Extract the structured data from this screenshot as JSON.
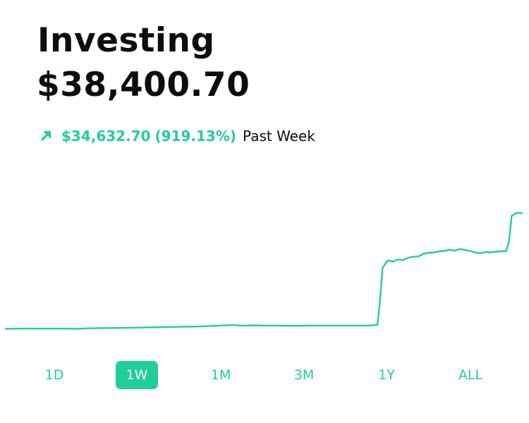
{
  "header": {
    "title": "Investing",
    "balance": "$38,400.70"
  },
  "change": {
    "amount": "$34,632.70",
    "percent": "(919.13%)",
    "period": "Past Week",
    "direction_icon": "arrow-up-right-icon"
  },
  "colors": {
    "accent": "#21ce99",
    "text": "#0d0d0d",
    "background": "#ffffff"
  },
  "chart_data": {
    "type": "line",
    "title": "",
    "xlabel": "",
    "ylabel": "",
    "grid": false,
    "legend": "none",
    "x": [
      0,
      2,
      4,
      6,
      8,
      10,
      12,
      14,
      16,
      18,
      20,
      22,
      24,
      26,
      28,
      30,
      32,
      34,
      36,
      38,
      40,
      42,
      44,
      46,
      48,
      50,
      52,
      54,
      56,
      58,
      60,
      62,
      64,
      66,
      68,
      70,
      72,
      72.5,
      73,
      74,
      75,
      76,
      77,
      78,
      79,
      80,
      81,
      82,
      83,
      84,
      85,
      86,
      87,
      88,
      89,
      90,
      91,
      92,
      93,
      94,
      95,
      96,
      97,
      97.5,
      98,
      99,
      100
    ],
    "values": [
      3768,
      3800,
      3820,
      3790,
      3830,
      3800,
      3790,
      3760,
      3900,
      3960,
      4000,
      4030,
      4080,
      4120,
      4200,
      4260,
      4310,
      4360,
      4420,
      4500,
      4620,
      4760,
      4880,
      4700,
      4800,
      4720,
      4700,
      4680,
      4690,
      4700,
      4710,
      4700,
      4700,
      4700,
      4700,
      4700,
      4900,
      12000,
      22000,
      24200,
      23800,
      24500,
      24300,
      25000,
      25300,
      25400,
      26200,
      26500,
      26600,
      26900,
      27000,
      27400,
      27100,
      27600,
      27300,
      27000,
      26500,
      26400,
      26700,
      26600,
      26800,
      26900,
      27000,
      30000,
      37500,
      38400,
      38300
    ],
    "ylim": [
      0,
      40000
    ],
    "xlim": [
      0,
      100
    ]
  },
  "ranges": [
    {
      "label": "1D",
      "active": false
    },
    {
      "label": "1W",
      "active": true
    },
    {
      "label": "1M",
      "active": false
    },
    {
      "label": "3M",
      "active": false
    },
    {
      "label": "1Y",
      "active": false
    },
    {
      "label": "ALL",
      "active": false
    }
  ]
}
